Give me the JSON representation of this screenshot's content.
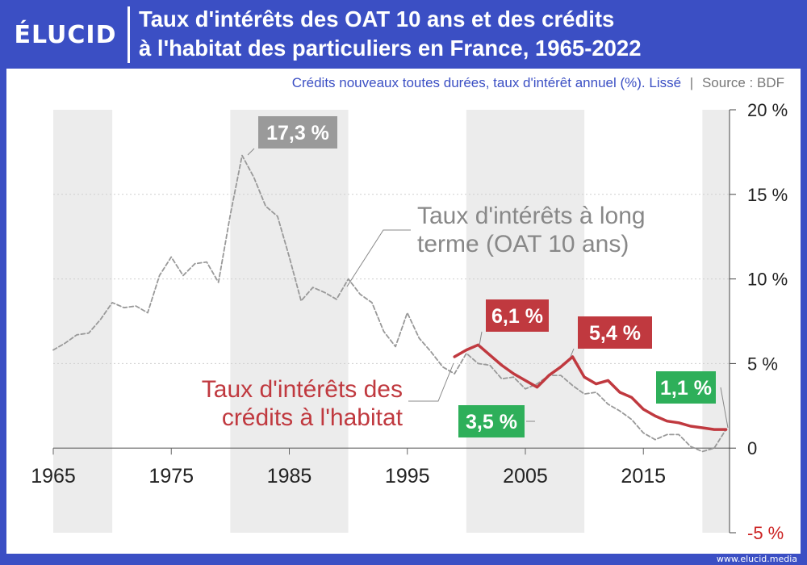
{
  "brand": {
    "logo_text": "ÉLUCID",
    "footer_url": "www.elucid.media"
  },
  "header": {
    "title_line1": "Taux d'intérêts des OAT 10 ans et des crédits",
    "title_line2": "à l'habitat des particuliers en France, 1965-2022"
  },
  "subtitle": {
    "text": "Crédits nouveaux toutes durées, taux d'intérêt annuel (%). Lissé",
    "separator": "|",
    "source": "Source : BDF"
  },
  "colors": {
    "oat": "#999999",
    "credit": "#c0393f",
    "green": "#2eaf5a",
    "header": "#3b4fc4",
    "negative_tick": "#cc2222"
  },
  "chart_data": {
    "type": "line",
    "title": "Taux d'intérêts des OAT 10 ans et des crédits à l'habitat des particuliers en France, 1965-2022",
    "subtitle": "Crédits nouveaux toutes durées, taux d'intérêt annuel (%). Lissé",
    "source": "BDF",
    "xlim": [
      1965,
      2022.3
    ],
    "ylim": [
      -5,
      20
    ],
    "x_ticks": [
      "1965",
      "1975",
      "1985",
      "1995",
      "2005",
      "2015"
    ],
    "y_ticks": [
      "20 %",
      "15 %",
      "10 %",
      "5 %",
      "0",
      "-5 %"
    ],
    "grid": "horizontal dotted, shaded decade bands",
    "series": [
      {
        "name": "Taux d'intérêts à long terme (OAT 10 ans)",
        "style": "dashed",
        "color": "#999999",
        "points": [
          [
            1965,
            5.8
          ],
          [
            1966,
            6.2
          ],
          [
            1967,
            6.7
          ],
          [
            1968,
            6.8
          ],
          [
            1969,
            7.6
          ],
          [
            1970,
            8.6
          ],
          [
            1971,
            8.3
          ],
          [
            1972,
            8.4
          ],
          [
            1973,
            8.0
          ],
          [
            1974,
            10.2
          ],
          [
            1975,
            11.3
          ],
          [
            1976,
            10.2
          ],
          [
            1977,
            10.9
          ],
          [
            1978,
            11.0
          ],
          [
            1979,
            9.8
          ],
          [
            1980,
            13.8
          ],
          [
            1981,
            17.3
          ],
          [
            1982,
            16.0
          ],
          [
            1983,
            14.3
          ],
          [
            1984,
            13.7
          ],
          [
            1985,
            11.3
          ],
          [
            1986,
            8.7
          ],
          [
            1987,
            9.5
          ],
          [
            1988,
            9.2
          ],
          [
            1989,
            8.8
          ],
          [
            1990,
            10.0
          ],
          [
            1991,
            9.1
          ],
          [
            1992,
            8.6
          ],
          [
            1993,
            6.9
          ],
          [
            1994,
            6.0
          ],
          [
            1995,
            8.0
          ],
          [
            1996,
            6.5
          ],
          [
            1997,
            5.7
          ],
          [
            1998,
            4.8
          ],
          [
            1999,
            4.4
          ],
          [
            2000,
            5.6
          ],
          [
            2001,
            5.0
          ],
          [
            2002,
            4.9
          ],
          [
            2003,
            4.1
          ],
          [
            2004,
            4.2
          ],
          [
            2005,
            3.5
          ],
          [
            2006,
            3.8
          ],
          [
            2007,
            4.3
          ],
          [
            2008,
            4.3
          ],
          [
            2009,
            3.7
          ],
          [
            2010,
            3.2
          ],
          [
            2011,
            3.3
          ],
          [
            2012,
            2.6
          ],
          [
            2013,
            2.2
          ],
          [
            2014,
            1.7
          ],
          [
            2015,
            0.9
          ],
          [
            2016,
            0.5
          ],
          [
            2017,
            0.8
          ],
          [
            2018,
            0.8
          ],
          [
            2019,
            0.1
          ],
          [
            2020,
            -0.2
          ],
          [
            2021,
            0.0
          ],
          [
            2022,
            1.1
          ]
        ]
      },
      {
        "name": "Taux d'intérêts des crédits à l'habitat",
        "style": "solid",
        "color": "#c0393f",
        "points": [
          [
            1999,
            5.4
          ],
          [
            2000,
            5.8
          ],
          [
            2001,
            6.1
          ],
          [
            2002,
            5.5
          ],
          [
            2003,
            4.9
          ],
          [
            2004,
            4.4
          ],
          [
            2005,
            4.0
          ],
          [
            2006,
            3.6
          ],
          [
            2007,
            4.3
          ],
          [
            2008,
            4.8
          ],
          [
            2009,
            5.4
          ],
          [
            2010,
            4.2
          ],
          [
            2011,
            3.8
          ],
          [
            2012,
            4.0
          ],
          [
            2013,
            3.3
          ],
          [
            2014,
            3.0
          ],
          [
            2015,
            2.3
          ],
          [
            2016,
            1.9
          ],
          [
            2017,
            1.6
          ],
          [
            2018,
            1.5
          ],
          [
            2019,
            1.3
          ],
          [
            2020,
            1.2
          ],
          [
            2021,
            1.1
          ],
          [
            2022,
            1.1
          ]
        ]
      }
    ],
    "annotations": [
      {
        "text": "17,3 %",
        "x": 1981,
        "y": 17.3,
        "color": "gray"
      },
      {
        "text": "6,1 %",
        "x": 2001,
        "y": 6.1,
        "color": "red"
      },
      {
        "text": "5,4 %",
        "x": 2009,
        "y": 5.4,
        "color": "red"
      },
      {
        "text": "3,5 %",
        "x": 2005,
        "y": 3.5,
        "color": "green"
      },
      {
        "text": "1,1 %",
        "x": 2022,
        "y": 1.1,
        "color": "green"
      }
    ],
    "series_labels": {
      "oat_line1": "Taux d'intérêts à long",
      "oat_line2": "terme (OAT 10 ans)",
      "credit_line1": "Taux d'intérêts des",
      "credit_line2": "crédits à l'habitat"
    }
  }
}
